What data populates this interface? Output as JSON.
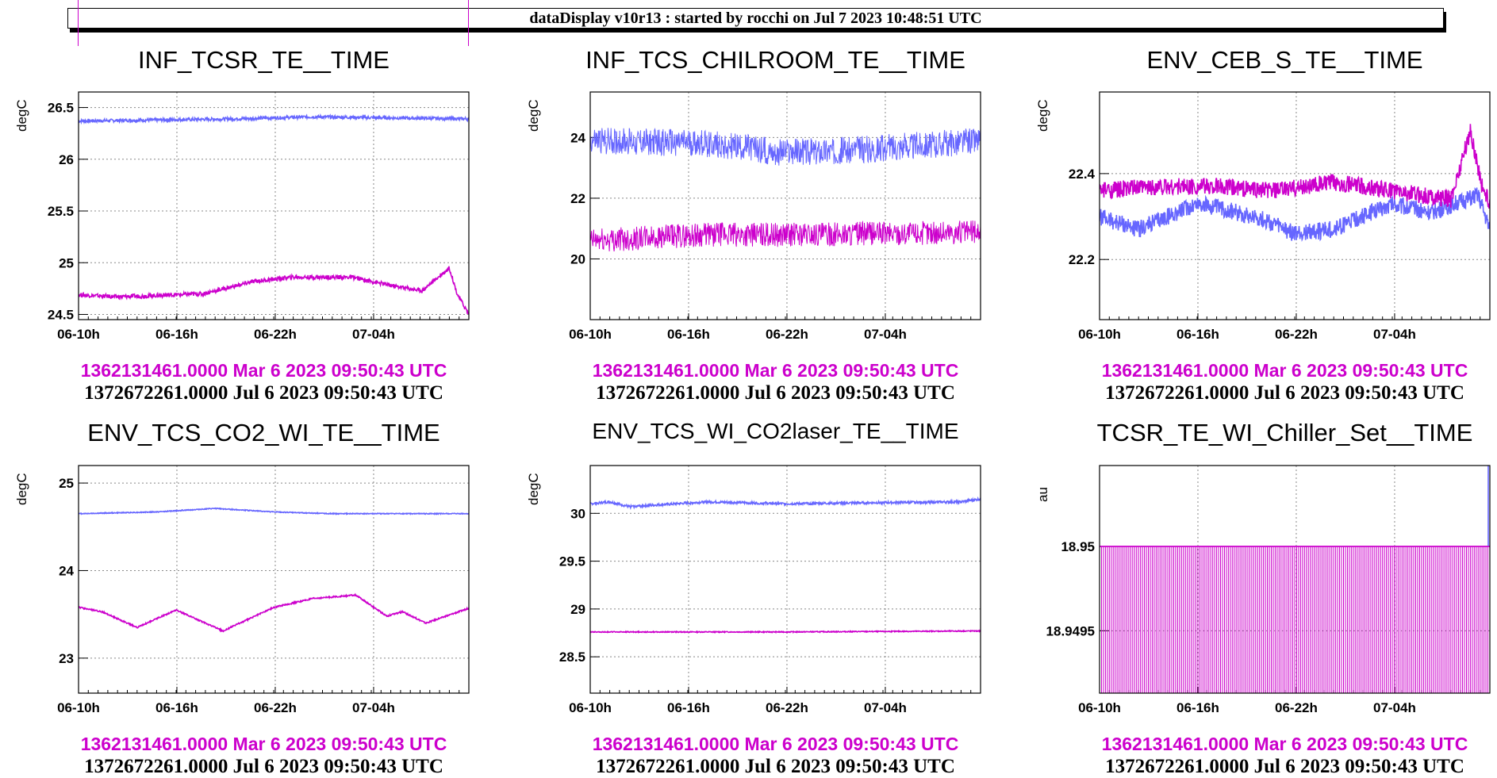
{
  "header": {
    "title": "dataDisplay v10r13 : started by rocchi on Jul  7 2023 10:48:51 UTC"
  },
  "colors": {
    "series_blue": "#6666ff",
    "series_magenta": "#cc00cc",
    "frame": "#000000",
    "grid": "#888888"
  },
  "chart_data": [
    {
      "type": "line",
      "title": "INF_TCSR_TE__TIME",
      "ylabel": "degC",
      "ylim": [
        24.45,
        26.65
      ],
      "yticks": [
        24.5,
        25,
        25.5,
        26,
        26.5
      ],
      "yticklabels": [
        "24.5",
        "25",
        "25.5",
        "26",
        "26.5"
      ],
      "xticklabels": [
        "06-10h",
        "06-16h",
        "06-22h",
        "07-04h"
      ],
      "grid": true,
      "x_range_days": [
        0,
        1
      ],
      "series": [
        {
          "color": "#6666ff",
          "noise": 0.015,
          "points": [
            [
              0,
              26.37
            ],
            [
              0.2,
              26.38
            ],
            [
              0.4,
              26.39
            ],
            [
              0.6,
              26.41
            ],
            [
              0.8,
              26.4
            ],
            [
              1,
              26.39
            ]
          ]
        },
        {
          "color": "#cc00cc",
          "noise": 0.02,
          "points": [
            [
              0,
              24.69
            ],
            [
              0.1,
              24.67
            ],
            [
              0.25,
              24.69
            ],
            [
              0.32,
              24.7
            ],
            [
              0.45,
              24.82
            ],
            [
              0.55,
              24.86
            ],
            [
              0.7,
              24.86
            ],
            [
              0.8,
              24.78
            ],
            [
              0.88,
              24.73
            ],
            [
              0.95,
              24.95
            ],
            [
              0.97,
              24.7
            ],
            [
              1,
              24.5
            ]
          ]
        }
      ],
      "range_start": "1362131461.0000 Mar 6 2023 09:50:43 UTC",
      "range_end": "1372672261.0000 Jul 6 2023 09:50:43 UTC"
    },
    {
      "type": "line",
      "title": "INF_TCS_CHILROOM_TE__TIME",
      "ylabel": "degC",
      "ylim": [
        18.0,
        25.5
      ],
      "yticks": [
        20,
        22,
        24
      ],
      "yticklabels": [
        "20",
        "22",
        "24"
      ],
      "xticklabels": [
        "06-10h",
        "06-16h",
        "06-22h",
        "07-04h"
      ],
      "grid": true,
      "x_range_days": [
        0,
        1
      ],
      "series": [
        {
          "color": "#6666ff",
          "noise": 0.45,
          "points": [
            [
              0,
              23.9
            ],
            [
              0.3,
              23.8
            ],
            [
              0.5,
              23.5
            ],
            [
              0.7,
              23.6
            ],
            [
              1,
              23.9
            ]
          ]
        },
        {
          "color": "#cc00cc",
          "noise": 0.4,
          "points": [
            [
              0,
              20.6
            ],
            [
              0.3,
              20.8
            ],
            [
              0.6,
              20.8
            ],
            [
              1,
              20.9
            ]
          ]
        }
      ],
      "range_start": "1362131461.0000 Mar 6 2023 09:50:43 UTC",
      "range_end": "1372672261.0000 Jul 6 2023 09:50:43 UTC"
    },
    {
      "type": "line",
      "title": "ENV_CEB_S_TE__TIME",
      "ylabel": "degC",
      "ylim": [
        22.06,
        22.59
      ],
      "yticks": [
        22.2,
        22.4
      ],
      "yticklabels": [
        "22.2",
        "22.4"
      ],
      "xticklabels": [
        "06-10h",
        "06-16h",
        "06-22h",
        "07-04h"
      ],
      "grid": true,
      "x_range_days": [
        0,
        1
      ],
      "series": [
        {
          "color": "#6666ff",
          "noise": 0.02,
          "points": [
            [
              0,
              22.3
            ],
            [
              0.1,
              22.27
            ],
            [
              0.25,
              22.33
            ],
            [
              0.4,
              22.3
            ],
            [
              0.5,
              22.26
            ],
            [
              0.6,
              22.27
            ],
            [
              0.75,
              22.33
            ],
            [
              0.85,
              22.31
            ],
            [
              0.97,
              22.35
            ],
            [
              1,
              22.27
            ]
          ]
        },
        {
          "color": "#cc00cc",
          "noise": 0.02,
          "points": [
            [
              0,
              22.36
            ],
            [
              0.15,
              22.37
            ],
            [
              0.3,
              22.37
            ],
            [
              0.45,
              22.36
            ],
            [
              0.6,
              22.38
            ],
            [
              0.75,
              22.36
            ],
            [
              0.9,
              22.34
            ],
            [
              0.95,
              22.5
            ],
            [
              0.98,
              22.37
            ],
            [
              1,
              22.33
            ]
          ]
        }
      ],
      "range_start": "1362131461.0000 Mar 6 2023 09:50:43 UTC",
      "range_end": "1372672261.0000 Jul 6 2023 09:50:43 UTC"
    },
    {
      "type": "line",
      "title": "ENV_TCS_CO2_WI_TE__TIME",
      "ylabel": "degC",
      "ylim": [
        22.6,
        25.2
      ],
      "yticks": [
        23,
        24,
        25
      ],
      "yticklabels": [
        "23",
        "24",
        "25"
      ],
      "xticklabels": [
        "06-10h",
        "06-16h",
        "06-22h",
        "07-04h"
      ],
      "grid": true,
      "x_range_days": [
        0,
        1
      ],
      "series": [
        {
          "color": "#6666ff",
          "noise": 0.005,
          "points": [
            [
              0,
              24.65
            ],
            [
              0.2,
              24.67
            ],
            [
              0.35,
              24.71
            ],
            [
              0.5,
              24.67
            ],
            [
              0.65,
              24.65
            ],
            [
              0.8,
              24.65
            ],
            [
              1,
              24.65
            ]
          ]
        },
        {
          "color": "#cc00cc",
          "noise": 0.008,
          "points": [
            [
              0,
              23.58
            ],
            [
              0.06,
              23.53
            ],
            [
              0.15,
              23.35
            ],
            [
              0.25,
              23.55
            ],
            [
              0.37,
              23.31
            ],
            [
              0.5,
              23.58
            ],
            [
              0.6,
              23.68
            ],
            [
              0.71,
              23.72
            ],
            [
              0.79,
              23.48
            ],
            [
              0.83,
              23.53
            ],
            [
              0.89,
              23.4
            ],
            [
              1,
              23.57
            ]
          ]
        }
      ],
      "range_start": "1362131461.0000 Mar 6 2023 09:50:43 UTC",
      "range_end": "1372672261.0000 Jul 6 2023 09:50:43 UTC"
    },
    {
      "type": "line",
      "title": "ENV_TCS_WI_CO2laser_TE__TIME",
      "ylabel": "degC",
      "ylim": [
        28.12,
        30.5
      ],
      "yticks": [
        28.5,
        29,
        29.5,
        30
      ],
      "yticklabels": [
        "28.5",
        "29",
        "29.5",
        "30"
      ],
      "xticklabels": [
        "06-10h",
        "06-16h",
        "06-22h",
        "07-04h"
      ],
      "grid": true,
      "x_range_days": [
        0,
        1
      ],
      "series": [
        {
          "color": "#6666ff",
          "noise": 0.012,
          "points": [
            [
              0,
              30.1
            ],
            [
              0.05,
              30.12
            ],
            [
              0.1,
              30.07
            ],
            [
              0.3,
              30.12
            ],
            [
              0.5,
              30.1
            ],
            [
              0.7,
              30.11
            ],
            [
              0.95,
              30.12
            ],
            [
              1,
              30.15
            ]
          ]
        },
        {
          "color": "#cc00cc",
          "noise": 0.005,
          "points": [
            [
              0,
              28.76
            ],
            [
              0.5,
              28.76
            ],
            [
              1,
              28.77
            ]
          ]
        }
      ],
      "range_start": "1362131461.0000 Mar 6 2023 09:50:43 UTC",
      "range_end": "1372672261.0000 Jul 6 2023 09:50:43 UTC"
    },
    {
      "type": "line",
      "title": "TCSR_TE_WI_Chiller_Set__TIME",
      "ylabel": "au",
      "ylim": [
        18.94913,
        18.95048
      ],
      "yticks": [
        18.9495,
        18.95
      ],
      "yticklabels": [
        "18.9495",
        "18.95"
      ],
      "xticklabels": [
        "06-10h",
        "06-16h",
        "06-22h",
        "07-04h"
      ],
      "grid": true,
      "x_range_days": [
        0,
        1
      ],
      "square_wave": {
        "high": 18.95,
        "low": 18.94913,
        "pulses": 100,
        "color": "#cc00cc"
      },
      "series": [
        {
          "color": "#6666ff",
          "noise": 0,
          "points": [
            [
              0.996,
              18.95
            ],
            [
              0.996,
              18.95048
            ]
          ]
        },
        {
          "color": "#cc00cc",
          "noise": 0,
          "points": [
            [
              0,
              18.95
            ],
            [
              1,
              18.95
            ]
          ]
        }
      ],
      "range_start": "1362131461.0000 Mar 6 2023 09:50:43 UTC",
      "range_end": "1372672261.0000 Jul 6 2023 09:50:43 UTC"
    }
  ]
}
